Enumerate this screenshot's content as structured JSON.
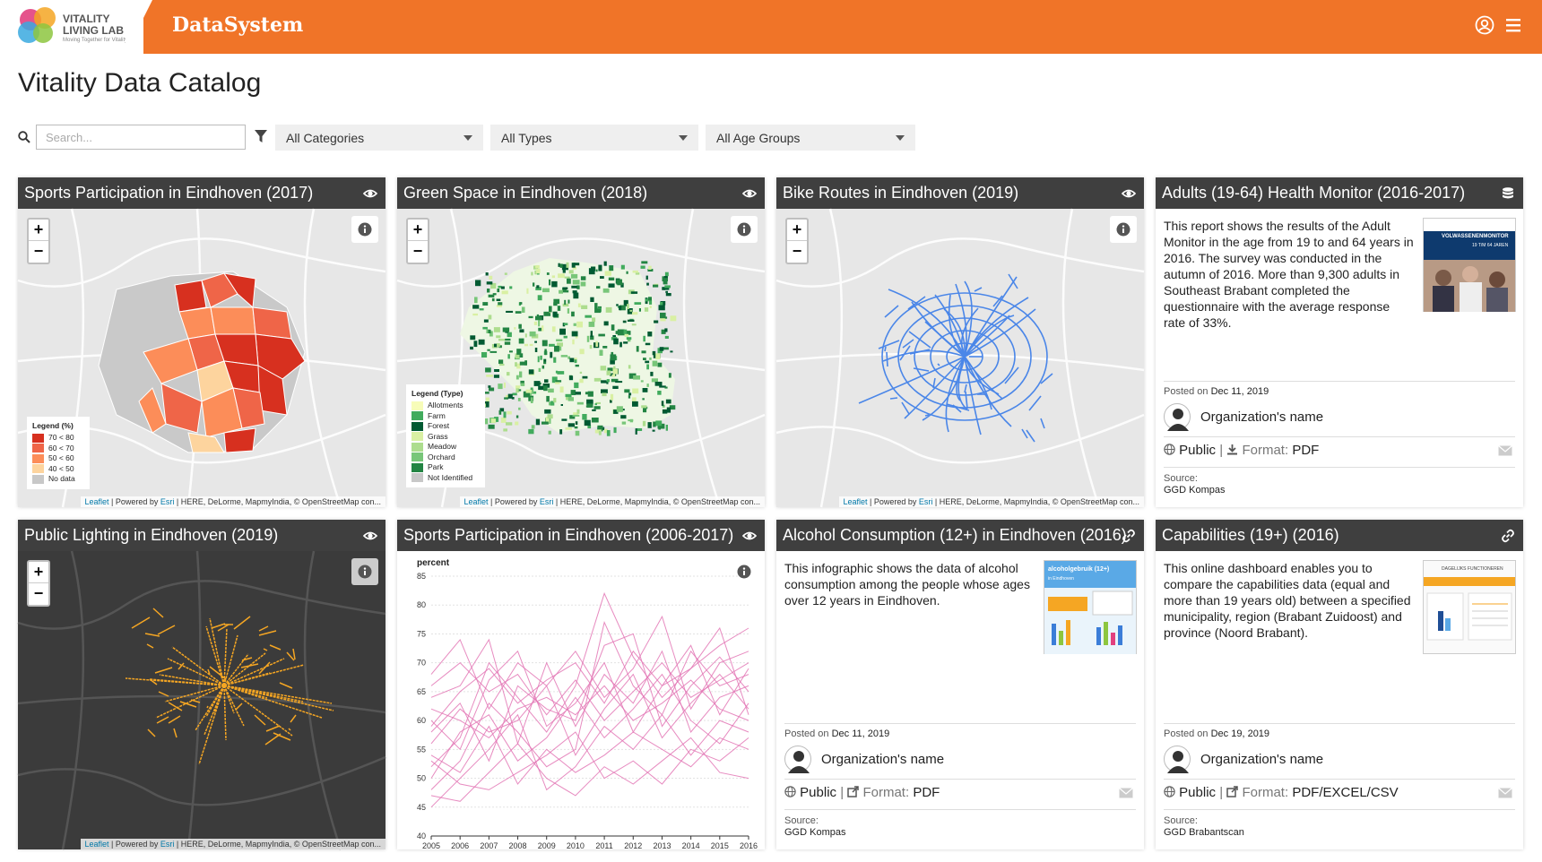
{
  "header": {
    "logo_line1": "VITALITY",
    "logo_line2": "LIVING LAB",
    "logo_tagline": "Moving Together for Vitality",
    "app_title": "DataSystem",
    "bar_color": "#f07428"
  },
  "page": {
    "title": "Vitality Data Catalog"
  },
  "filters": {
    "search_placeholder": "Search...",
    "category": "All Categories",
    "type": "All Types",
    "age_group": "All Age Groups"
  },
  "map_attribution": {
    "leaflet": "Leaflet",
    "powered": " | Powered by ",
    "esri": "Esri",
    "rest": " | HERE, DeLorme, MapmyIndia, © OpenStreetMap con..."
  },
  "cards": [
    {
      "title": "Sports Participation in Eindhoven (2017)",
      "head_icon": "eye-icon",
      "legend": {
        "title": "Legend (%)",
        "items": [
          {
            "label": "70 < 80",
            "color": "#d7301f"
          },
          {
            "label": "60 < 70",
            "color": "#ef6548"
          },
          {
            "label": "50 < 60",
            "color": "#fc8d59"
          },
          {
            "label": "40 < 50",
            "color": "#fdd49e"
          },
          {
            "label": "No data",
            "color": "#c8c8c8"
          }
        ]
      }
    },
    {
      "title": "Green Space in Eindhoven (2018)",
      "head_icon": "eye-icon",
      "legend": {
        "title": "Legend (Type)",
        "items": [
          {
            "label": "Allotments",
            "color": "#f7fcb9"
          },
          {
            "label": "Farm",
            "color": "#41ab5d"
          },
          {
            "label": "Forest",
            "color": "#005a32"
          },
          {
            "label": "Grass",
            "color": "#d9f0a3"
          },
          {
            "label": "Meadow",
            "color": "#addd8e"
          },
          {
            "label": "Orchard",
            "color": "#78c679"
          },
          {
            "label": "Park",
            "color": "#238443"
          },
          {
            "label": "Not Identified",
            "color": "#c8c8c8"
          }
        ]
      }
    },
    {
      "title": "Bike Routes in Eindhoven (2019)",
      "head_icon": "eye-icon"
    },
    {
      "title": "Adults (19-64) Health Monitor (2016-2017)",
      "head_icon": "database-icon",
      "description": "This report shows the results of the Adult Monitor in the age from 19 to and 64 years in 2016. The survey was conducted in the autumn of 2016. More than 9,300 adults in Southeast Brabant completed the questionnaire with the average response rate of 33%.",
      "thumb_title": "VOLWASSENENMONITOR",
      "thumb_sub": "19 T/M 64 JAREN",
      "posted_label": "Posted on",
      "posted_date": "Dec 11, 2019",
      "org": "Organization's name",
      "access": "Public",
      "format_label": "Format:",
      "format": "PDF",
      "source_label": "Source:",
      "source": "GGD Kompas"
    },
    {
      "title": "Public Lighting in Eindhoven (2019)",
      "head_icon": "eye-icon"
    },
    {
      "title": "Sports Participation in Eindhoven (2006-2017)",
      "head_icon": "eye-icon"
    },
    {
      "title": "Alcohol Consumption (12+) in Eindhoven (2016)",
      "head_icon": "link-icon",
      "description": "This infographic shows the data of alcohol consumption among the people whose ages over 12 years in Eindhoven.",
      "thumb_title": "alcoholgebruik (12+)",
      "thumb_sub": "in Eindhoven",
      "posted_label": "Posted on",
      "posted_date": "Dec 11, 2019",
      "org": "Organization's name",
      "access": "Public",
      "format_label": "Format:",
      "format": "PDF",
      "source_label": "Source:",
      "source": "GGD Kompas"
    },
    {
      "title": "Capabilities (19+) (2016)",
      "head_icon": "link-icon",
      "description": "This online dashboard enables you to compare the capabilities data (equal and more than 19 years old) between a specified municipality, region (Brabant Zuidoost) and province (Noord Brabant).",
      "thumb_title": "DAGELIJKS FUNCTIONEREN",
      "thumb_sub": "",
      "posted_label": "Posted on",
      "posted_date": "Dec 19, 2019",
      "org": "Organization's name",
      "access": "Public",
      "format_label": "Format:",
      "format": "PDF/EXCEL/CSV",
      "source_label": "Source:",
      "source": "GGD Brabantscan"
    }
  ],
  "chart_data": {
    "type": "line",
    "ylabel": "percent",
    "ylim": [
      40,
      85
    ],
    "yticks": [
      40,
      45,
      50,
      55,
      60,
      65,
      70,
      75,
      80,
      85
    ],
    "x": [
      2005,
      2006,
      2007,
      2008,
      2009,
      2010,
      2011,
      2012,
      2013,
      2014,
      2015,
      2016
    ],
    "line_color": "#e377b5",
    "series": [
      {
        "values": [
          52,
          57,
          70,
          64,
          58,
          66,
          82,
          71,
          64,
          69,
          73,
          76
        ]
      },
      {
        "values": [
          48,
          53,
          63,
          58,
          52,
          55,
          77,
          66,
          61,
          72,
          66,
          68
        ]
      },
      {
        "values": [
          68,
          74,
          62,
          70,
          66,
          72,
          64,
          69,
          78,
          62,
          70,
          72
        ]
      },
      {
        "values": [
          60,
          55,
          67,
          72,
          59,
          63,
          70,
          58,
          66,
          73,
          61,
          69
        ]
      },
      {
        "values": [
          56,
          62,
          58,
          60,
          66,
          54,
          62,
          68,
          57,
          63,
          68,
          62
        ]
      },
      {
        "values": [
          64,
          66,
          74,
          56,
          70,
          59,
          68,
          63,
          72,
          58,
          64,
          66
        ]
      },
      {
        "values": [
          45,
          50,
          55,
          61,
          48,
          52,
          59,
          55,
          61,
          54,
          60,
          58
        ]
      },
      {
        "values": [
          58,
          63,
          53,
          66,
          62,
          60,
          73,
          75,
          59,
          66,
          71,
          65
        ]
      },
      {
        "values": [
          50,
          58,
          61,
          53,
          57,
          64,
          57,
          62,
          68,
          60,
          56,
          63
        ]
      },
      {
        "values": [
          62,
          60,
          57,
          62,
          64,
          61,
          66,
          60,
          63,
          67,
          62,
          60
        ]
      },
      {
        "values": [
          54,
          51,
          59,
          49,
          55,
          51,
          54,
          58,
          55,
          52,
          57,
          55
        ]
      },
      {
        "values": [
          66,
          70,
          65,
          68,
          61,
          67,
          60,
          65,
          70,
          64,
          67,
          70
        ]
      },
      {
        "values": [
          47,
          46,
          51,
          56,
          50,
          47,
          52,
          49,
          53,
          57,
          51,
          50
        ]
      },
      {
        "values": [
          59,
          65,
          69,
          63,
          67,
          70,
          63,
          72,
          66,
          69,
          76,
          61
        ]
      },
      {
        "values": [
          53,
          49,
          48,
          51,
          54,
          58,
          50,
          53,
          49,
          55,
          53,
          57
        ]
      }
    ]
  }
}
